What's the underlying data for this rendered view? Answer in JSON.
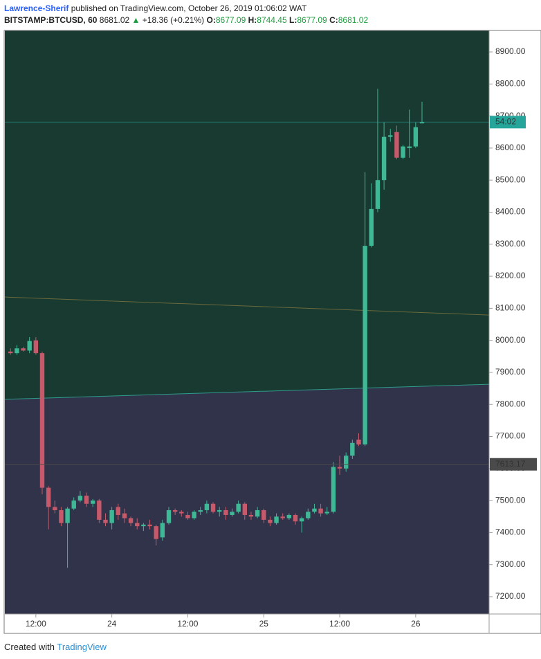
{
  "header": {
    "author": "Lawrence-Sherif",
    "published": "published on TradingView.com, October 26, 2019 01:06:02 WAT",
    "symbol": "BITSTAMP:BTCUSD, 60",
    "last": "8681.02",
    "change_arrow": "▲",
    "change": "+18.36 (+0.21%)",
    "o_label": "O:",
    "o": "8677.09",
    "h_label": "H:",
    "h": "8744.45",
    "l_label": "L:",
    "l": "8677.09",
    "c_label": "C:",
    "c": "8681.02"
  },
  "footer": {
    "created": "Created with",
    "brand": "TradingView"
  },
  "chart_data": {
    "type": "candlestick",
    "x": [
      8,
      9,
      10,
      11,
      12,
      13,
      14,
      15,
      16,
      17,
      18,
      19,
      20,
      21,
      22,
      23,
      24,
      25,
      26,
      27,
      28,
      29,
      30,
      31,
      32,
      33,
      34,
      35,
      36,
      37,
      38,
      39,
      40,
      41,
      42,
      43,
      44,
      45,
      46,
      47,
      48,
      49,
      50,
      51,
      52,
      53,
      54,
      55,
      56,
      57,
      58,
      59,
      60,
      61,
      62,
      63,
      64,
      65,
      66,
      67,
      68,
      69,
      70,
      71,
      72,
      73
    ],
    "open": [
      7965,
      7960,
      7975,
      7968,
      8000,
      7960,
      7540,
      7480,
      7470,
      7430,
      7475,
      7500,
      7515,
      7490,
      7500,
      7440,
      7430,
      7480,
      7460,
      7445,
      7430,
      7420,
      7425,
      7420,
      7385,
      7430,
      7470,
      7465,
      7455,
      7445,
      7465,
      7470,
      7490,
      7465,
      7470,
      7455,
      7465,
      7490,
      7455,
      7450,
      7470,
      7440,
      7430,
      7450,
      7445,
      7455,
      7435,
      7445,
      7465,
      7475,
      7460,
      7465,
      7605,
      7600,
      7640,
      7690,
      7675,
      8295,
      8410,
      8500,
      8635,
      8650,
      8570,
      8600,
      8605,
      8677.09
    ],
    "high": [
      7975,
      7985,
      7980,
      8010,
      8010,
      7965,
      7545,
      7500,
      7480,
      7480,
      7510,
      7530,
      7525,
      7505,
      7505,
      7460,
      7480,
      7490,
      7475,
      7450,
      7445,
      7430,
      7440,
      7425,
      7440,
      7480,
      7475,
      7470,
      7465,
      7470,
      7480,
      7500,
      7495,
      7480,
      7480,
      7475,
      7500,
      7495,
      7465,
      7480,
      7475,
      7450,
      7460,
      7460,
      7460,
      7460,
      7450,
      7475,
      7490,
      7490,
      7480,
      7620,
      7640,
      7650,
      7690,
      7710,
      8525,
      8490,
      8785,
      8680,
      8660,
      8670,
      8610,
      8720,
      8680,
      8744.45
    ],
    "low": [
      7955,
      7955,
      7965,
      7960,
      7955,
      7520,
      7410,
      7460,
      7420,
      7290,
      7470,
      7495,
      7480,
      7480,
      7430,
      7420,
      7410,
      7440,
      7430,
      7420,
      7410,
      7405,
      7410,
      7360,
      7375,
      7425,
      7455,
      7450,
      7440,
      7440,
      7455,
      7460,
      7460,
      7450,
      7440,
      7450,
      7460,
      7440,
      7440,
      7445,
      7430,
      7420,
      7425,
      7440,
      7440,
      7425,
      7400,
      7440,
      7460,
      7450,
      7455,
      7460,
      7580,
      7590,
      7630,
      7670,
      7670,
      8290,
      8400,
      8470,
      8620,
      8565,
      8565,
      8570,
      8600,
      8677.09
    ],
    "close": [
      7960,
      7975,
      7968,
      7998,
      7960,
      7540,
      7480,
      7470,
      7430,
      7475,
      7500,
      7515,
      7490,
      7500,
      7440,
      7430,
      7470,
      7455,
      7445,
      7430,
      7420,
      7425,
      7420,
      7380,
      7430,
      7470,
      7465,
      7460,
      7445,
      7465,
      7470,
      7490,
      7465,
      7470,
      7455,
      7465,
      7490,
      7455,
      7450,
      7470,
      7440,
      7430,
      7450,
      7445,
      7455,
      7435,
      7445,
      7465,
      7475,
      7460,
      7465,
      7605,
      7600,
      7640,
      7680,
      7675,
      8295,
      8410,
      8500,
      8635,
      8640,
      8570,
      8605,
      8605,
      8665,
      8681.02
    ],
    "up_color": "#3fb896",
    "down_color": "#c65a6b",
    "xlim": [
      7.1,
      83.6
    ],
    "xticks": [
      {
        "value": 12,
        "label": "12:00"
      },
      24,
      {
        "value": 36,
        "label": "12:00"
      },
      {
        "value": 48,
        "label": "25"
      },
      {
        "value": 60,
        "label": "12:00"
      },
      {
        "value": 72,
        "label": "26"
      }
    ],
    "ylim": [
      7146,
      8967
    ],
    "yticks": [
      {
        "value": 7200,
        "label": "7200.00"
      },
      {
        "value": 7300,
        "label": "7300.00"
      },
      {
        "value": 7400,
        "label": "7400.00"
      },
      {
        "value": 7500,
        "label": "7500.00"
      },
      {
        "value": 7600,
        "label": "7600.00"
      },
      {
        "value": 7700,
        "label": "7700.00"
      },
      {
        "value": 7800,
        "label": "7800.00"
      },
      {
        "value": 7900,
        "label": "7900.00"
      },
      {
        "value": 8000,
        "label": "8000.00"
      },
      {
        "value": 8100,
        "label": "8100.00"
      },
      {
        "value": 8200,
        "label": "8200.00"
      },
      {
        "value": 8300,
        "label": "8300.00"
      },
      {
        "value": 8400,
        "label": "8400.00"
      },
      {
        "value": 8500,
        "label": "8500.00"
      },
      {
        "value": 8600,
        "label": "8600.00"
      },
      {
        "value": 8700,
        "label": "8700.00"
      },
      {
        "value": 8800,
        "label": "8800.00"
      },
      {
        "value": 8900,
        "label": "8900.00"
      }
    ],
    "zone_line": {
      "start": 7816,
      "end": 7863,
      "color": "#2f9c8c",
      "above_color": "#193a31",
      "below_color": "#31334a"
    },
    "trend_line": {
      "start": 8135,
      "end": 8079,
      "color": "#6b6a3c"
    },
    "countdown": "54:02",
    "countdown_color": "#26a69a",
    "price_line": {
      "value": 7613.17,
      "color": "#4a4a4a"
    }
  }
}
